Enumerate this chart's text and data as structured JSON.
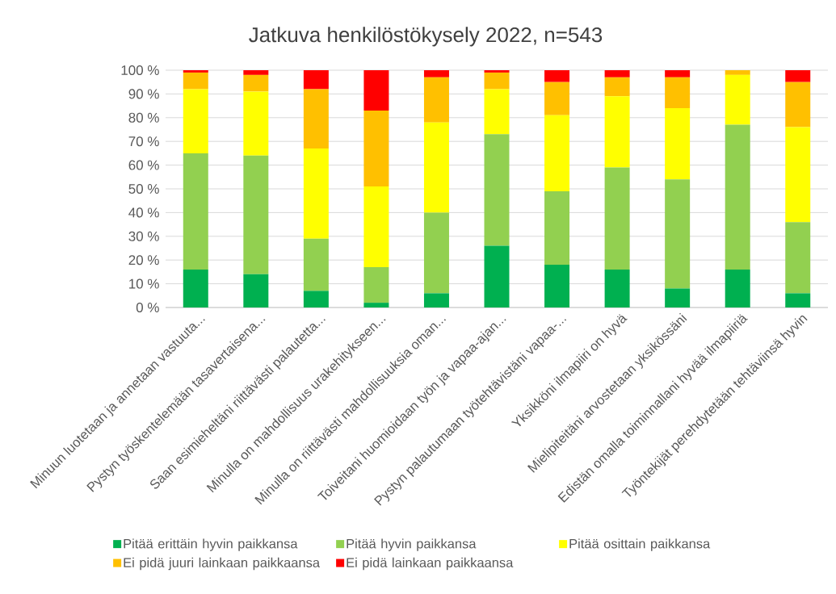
{
  "chart_data": {
    "type": "bar",
    "stacked": true,
    "title": "Jatkuva henkilöstökysely 2022, n=543",
    "categories": [
      "Minuun luotetaan ja annetaan vastuuta...",
      "Pystyn työskentelemään tasavertaisena...",
      "Saan esimieheltäni riittävästi palautetta...",
      "Minulla on mahdollisuus urakehitykseen...",
      "Minulla on riittävästi mahdollisuuksia oman...",
      "Toiveitani huomioidaan työn ja vapaa-ajan...",
      "Pystyn palautumaan työtehtävistäni vapaa-...",
      "Yksikköni ilmapiiri on hyvä",
      "Mielipiteitäni arvostetaan yksikössäni",
      "Edistän omalla toiminnallani hyvää ilmapiiriä",
      "Työntekijät perehdytetään tehtäviinsä hyvin"
    ],
    "series": [
      {
        "name": "Pitää erittäin hyvin paikkansa",
        "color": "#00b050",
        "values": [
          16,
          14,
          7,
          2,
          6,
          26,
          18,
          16,
          8,
          16,
          6
        ]
      },
      {
        "name": "Pitää hyvin paikkansa",
        "color": "#92d050",
        "values": [
          49,
          50,
          22,
          15,
          34,
          47,
          31,
          43,
          46,
          61,
          30
        ]
      },
      {
        "name": "Pitää osittain paikkansa",
        "color": "#ffff00",
        "values": [
          27,
          27,
          38,
          34,
          38,
          19,
          32,
          30,
          30,
          21,
          40
        ]
      },
      {
        "name": "Ei pidä juuri lainkaan paikkaansa",
        "color": "#ffc000",
        "values": [
          7,
          7,
          25,
          32,
          19,
          7,
          14,
          8,
          13,
          2,
          19
        ]
      },
      {
        "name": "Ei pidä lainkaan paikkaansa",
        "color": "#ff0000",
        "values": [
          1,
          2,
          8,
          17,
          3,
          1,
          5,
          3,
          3,
          0,
          5
        ]
      }
    ],
    "ylim": [
      0,
      100
    ],
    "yticks": [
      {
        "value": 0,
        "label": "0 %"
      },
      {
        "value": 10,
        "label": "10 %"
      },
      {
        "value": 20,
        "label": "20 %"
      },
      {
        "value": 30,
        "label": "30 %"
      },
      {
        "value": 40,
        "label": "40 %"
      },
      {
        "value": 50,
        "label": "50 %"
      },
      {
        "value": 60,
        "label": "60 %"
      },
      {
        "value": 70,
        "label": "70 %"
      },
      {
        "value": 80,
        "label": "80 %"
      },
      {
        "value": 90,
        "label": "90 %"
      },
      {
        "value": 100,
        "label": "100 %"
      }
    ],
    "grid": "y",
    "legend": "bottom"
  }
}
